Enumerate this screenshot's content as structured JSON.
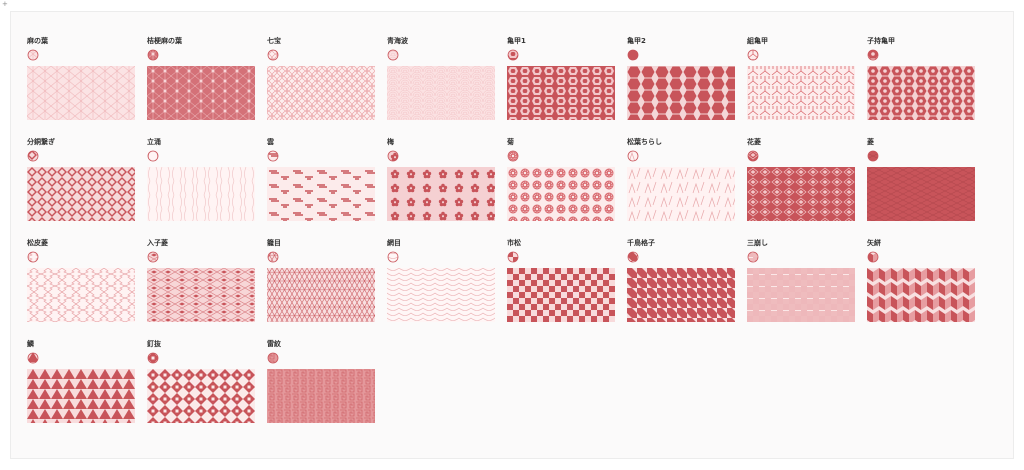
{
  "colors": {
    "accent": "#c8545a",
    "light": "#f9dede",
    "pale": "#fdf0f0"
  },
  "patterns": [
    {
      "label": "麻の葉",
      "icon": "asanoha-icon",
      "key": "asanoha"
    },
    {
      "label": "桔梗麻の葉",
      "icon": "kikyo-asanoha-icon",
      "key": "kikyo"
    },
    {
      "label": "七宝",
      "icon": "shippo-icon",
      "key": "shippo"
    },
    {
      "label": "青海波",
      "icon": "seigaiha-icon",
      "key": "seigaiha"
    },
    {
      "label": "亀甲1",
      "icon": "kikko-1-icon",
      "key": "kikko1"
    },
    {
      "label": "亀甲2",
      "icon": "kikko-2-icon",
      "key": "kikko2"
    },
    {
      "label": "組亀甲",
      "icon": "kumi-kikko-icon",
      "key": "kumikikko"
    },
    {
      "label": "子持亀甲",
      "icon": "komochi-kikko-icon",
      "key": "komochi"
    },
    {
      "label": "分銅繋ぎ",
      "icon": "fundo-tsunagi-icon",
      "key": "fundo"
    },
    {
      "label": "立涌",
      "icon": "tatewaku-icon",
      "key": "tatewaku"
    },
    {
      "label": "雲",
      "icon": "cloud-icon",
      "key": "kumo"
    },
    {
      "label": "梅",
      "icon": "ume-icon",
      "key": "ume"
    },
    {
      "label": "菊",
      "icon": "kiku-icon",
      "key": "kiku"
    },
    {
      "label": "松葉ちらし",
      "icon": "matsuba-icon",
      "key": "matsuba"
    },
    {
      "label": "花菱",
      "icon": "hanabishi-icon",
      "key": "hanabishi"
    },
    {
      "label": "菱",
      "icon": "hishi-icon",
      "key": "hishi"
    },
    {
      "label": "松皮菱",
      "icon": "matsukawabishi-icon",
      "key": "matsukawa"
    },
    {
      "label": "入子菱",
      "icon": "irekobishi-icon",
      "key": "ireko"
    },
    {
      "label": "籠目",
      "icon": "kagome-icon",
      "key": "kagome"
    },
    {
      "label": "網目",
      "icon": "amime-icon",
      "key": "amime"
    },
    {
      "label": "市松",
      "icon": "ichimatsu-icon",
      "key": "ichimatsu"
    },
    {
      "label": "千鳥格子",
      "icon": "houndstooth-icon",
      "key": "chidori"
    },
    {
      "label": "三崩し",
      "icon": "sankuzushi-icon",
      "key": "sankuzushi"
    },
    {
      "label": "矢絣",
      "icon": "yagasuri-icon",
      "key": "yagasuri"
    },
    {
      "label": "鱗",
      "icon": "uroko-icon",
      "key": "uroko"
    },
    {
      "label": "釘抜",
      "icon": "kuginuki-icon",
      "key": "kuginuki"
    },
    {
      "label": "雷紋",
      "icon": "raimon-icon",
      "key": "raimon"
    }
  ]
}
